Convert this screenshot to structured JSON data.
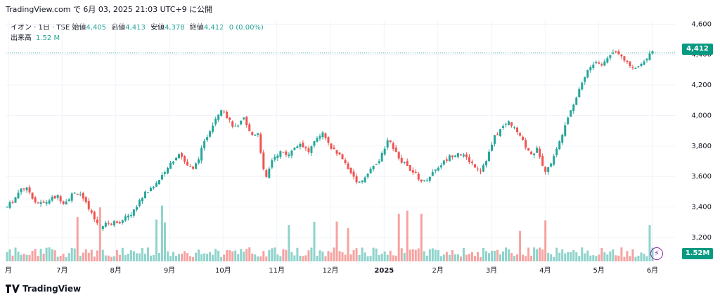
{
  "header": {
    "source": "TradingView.com で 6月 03, 2025 21:03 UTC+9 に公開"
  },
  "legend": {
    "symbol": "イオン · 1日 · TSE",
    "open_label": "始値",
    "open": "4,405",
    "high_label": "高値",
    "high": "4,413",
    "low_label": "安値",
    "low": "4,378",
    "close_label": "終値",
    "close": "4,412",
    "change": "0 (0.00%)",
    "volume_label": "出来高",
    "volume": "1.52 M"
  },
  "brand": {
    "name": "TradingView"
  },
  "price_tag": "4,412",
  "volume_tag": "1.52M",
  "colors": {
    "up": "#26a69a",
    "down": "#ef5350",
    "up_vol": "#8fd3cb",
    "down_vol": "#f5a3a1",
    "last_line": "#26a69a",
    "grid": "#f0f3fa"
  },
  "chart_data": {
    "type": "candlestick",
    "title": "",
    "ylim": [
      3200,
      4620
    ],
    "y_ticks": [
      "4,600",
      "4,400",
      "4,200",
      "4,000",
      "3,800",
      "3,600",
      "3,400",
      "3,200"
    ],
    "x_ticks": [
      "月",
      "7月",
      "8月",
      "9月",
      "10月",
      "11月",
      "12月",
      "2025",
      "2月",
      "3月",
      "4月",
      "5月",
      "6月"
    ],
    "last_close": 4412,
    "price_path": [
      3400,
      3450,
      3530,
      3510,
      3430,
      3420,
      3450,
      3470,
      3430,
      3480,
      3500,
      3420,
      3330,
      3270,
      3290,
      3300,
      3310,
      3340,
      3400,
      3480,
      3520,
      3560,
      3620,
      3700,
      3760,
      3680,
      3640,
      3760,
      3880,
      3980,
      4060,
      3960,
      3910,
      3980,
      3870,
      3890,
      3560,
      3720,
      3760,
      3740,
      3790,
      3820,
      3760,
      3830,
      3880,
      3790,
      3760,
      3700,
      3620,
      3560,
      3600,
      3660,
      3710,
      3830,
      3790,
      3700,
      3660,
      3610,
      3560,
      3610,
      3660,
      3700,
      3740,
      3760,
      3720,
      3680,
      3640,
      3730,
      3860,
      3920,
      3960,
      3900,
      3820,
      3740,
      3780,
      3640,
      3700,
      3820,
      3980,
      4080,
      4200,
      4300,
      4350,
      4330,
      4400,
      4430,
      4380,
      4300,
      4320,
      4380,
      4412
    ]
  }
}
